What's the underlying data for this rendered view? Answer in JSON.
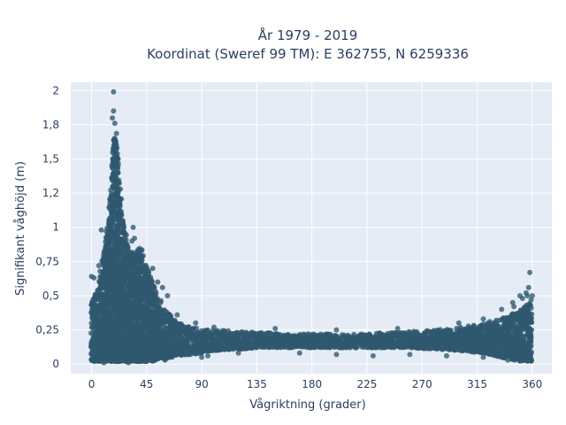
{
  "chart_data": {
    "type": "scatter",
    "title_line1": "År 1979 - 2019",
    "title_line2": "Koordinat (Sweref 99 TM): E 362755, N 6259336",
    "xlabel": "Vågriktning (grader)",
    "ylabel": "Signifikant våghöjd (m)",
    "xlim": [
      -17,
      376
    ],
    "ylim": [
      -0.07,
      2.06
    ],
    "x_ticks": [
      0,
      45,
      90,
      135,
      180,
      225,
      270,
      315,
      360
    ],
    "x_tick_labels": [
      "0",
      "45",
      "90",
      "135",
      "180",
      "225",
      "270",
      "315",
      "360"
    ],
    "y_ticks": [
      0,
      0.25,
      0.5,
      0.75,
      1,
      1.25,
      1.5,
      1.75,
      2
    ],
    "y_tick_labels": [
      "0",
      "0,25",
      "0,5",
      "0,75",
      "1",
      "1,2",
      "1,5",
      "1,8",
      "2"
    ],
    "grid": true,
    "colors": {
      "marker": "#2f5870",
      "plot_bg": "#e5ecf6",
      "grid": "#ffffff"
    },
    "series": [
      {
        "envelope_x": [
          0,
          5,
          10,
          15,
          18,
          20,
          22,
          25,
          30,
          35,
          40,
          45,
          50,
          55,
          60,
          70,
          80,
          90,
          100,
          120,
          140,
          160,
          180,
          200,
          220,
          240,
          260,
          280,
          300,
          310,
          320,
          330,
          340,
          345,
          350,
          355,
          358,
          360
        ],
        "envelope_y_max": [
          0.45,
          0.55,
          0.82,
          1.2,
          1.65,
          1.72,
          1.45,
          1.1,
          0.85,
          0.8,
          0.88,
          0.72,
          0.6,
          0.5,
          0.4,
          0.3,
          0.28,
          0.25,
          0.25,
          0.24,
          0.23,
          0.22,
          0.22,
          0.22,
          0.22,
          0.23,
          0.24,
          0.25,
          0.27,
          0.28,
          0.3,
          0.32,
          0.35,
          0.37,
          0.4,
          0.44,
          0.46,
          0.42
        ],
        "envelope_y_min": [
          0.02,
          0.02,
          0.02,
          0.02,
          0.02,
          0.02,
          0.02,
          0.02,
          0.02,
          0.02,
          0.02,
          0.02,
          0.02,
          0.04,
          0.04,
          0.06,
          0.07,
          0.08,
          0.1,
          0.11,
          0.12,
          0.12,
          0.12,
          0.12,
          0.12,
          0.12,
          0.12,
          0.11,
          0.1,
          0.09,
          0.08,
          0.06,
          0.04,
          0.03,
          0.02,
          0.02,
          0.02,
          0.02
        ],
        "outliers": [
          {
            "x": 18,
            "y": 1.99
          },
          {
            "x": 18,
            "y": 1.85
          },
          {
            "x": 17,
            "y": 1.8
          },
          {
            "x": 19,
            "y": 1.76
          },
          {
            "x": 8,
            "y": 0.98
          },
          {
            "x": 34,
            "y": 1.0
          },
          {
            "x": 35,
            "y": 0.92
          },
          {
            "x": 33,
            "y": 0.9
          },
          {
            "x": 27,
            "y": 0.92
          },
          {
            "x": 0,
            "y": 0.64
          },
          {
            "x": 2,
            "y": 0.63
          },
          {
            "x": 6,
            "y": 0.72
          },
          {
            "x": 7,
            "y": 0.68
          },
          {
            "x": 50,
            "y": 0.7
          },
          {
            "x": 54,
            "y": 0.6
          },
          {
            "x": 58,
            "y": 0.56
          },
          {
            "x": 62,
            "y": 0.5
          },
          {
            "x": 70,
            "y": 0.36
          },
          {
            "x": 85,
            "y": 0.3
          },
          {
            "x": 100,
            "y": 0.27
          },
          {
            "x": 150,
            "y": 0.26
          },
          {
            "x": 200,
            "y": 0.25
          },
          {
            "x": 250,
            "y": 0.26
          },
          {
            "x": 300,
            "y": 0.3
          },
          {
            "x": 320,
            "y": 0.33
          },
          {
            "x": 335,
            "y": 0.4
          },
          {
            "x": 344,
            "y": 0.45
          },
          {
            "x": 350,
            "y": 0.5
          },
          {
            "x": 352,
            "y": 0.48
          },
          {
            "x": 355,
            "y": 0.52
          },
          {
            "x": 356,
            "y": 0.5
          },
          {
            "x": 357,
            "y": 0.56
          },
          {
            "x": 358,
            "y": 0.67
          },
          {
            "x": 359,
            "y": 0.47
          },
          {
            "x": 360,
            "y": 0.5
          },
          {
            "x": 345,
            "y": 0.42
          },
          {
            "x": 90,
            "y": 0.05
          },
          {
            "x": 95,
            "y": 0.06
          },
          {
            "x": 120,
            "y": 0.08
          },
          {
            "x": 170,
            "y": 0.08
          },
          {
            "x": 200,
            "y": 0.07
          },
          {
            "x": 230,
            "y": 0.06
          },
          {
            "x": 260,
            "y": 0.07
          },
          {
            "x": 290,
            "y": 0.06
          },
          {
            "x": 320,
            "y": 0.05
          },
          {
            "x": 340,
            "y": 0.03
          },
          {
            "x": 10,
            "y": 0.01
          },
          {
            "x": 30,
            "y": 0.01
          },
          {
            "x": 45,
            "y": 0.02
          },
          {
            "x": 60,
            "y": 0.03
          }
        ]
      }
    ]
  }
}
